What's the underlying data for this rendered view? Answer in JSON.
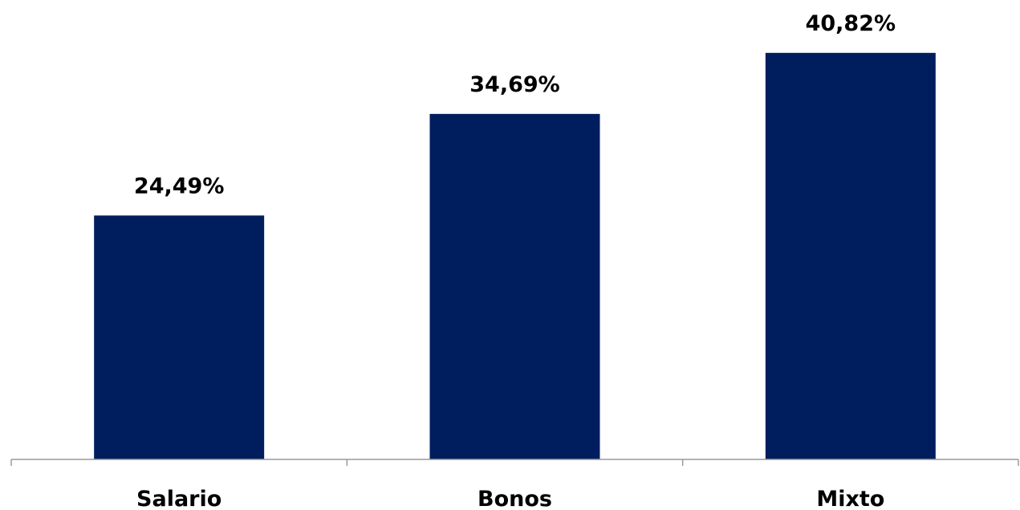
{
  "chart_data": {
    "type": "bar",
    "categories": [
      "Salario",
      "Bonos",
      "Mixto"
    ],
    "values": [
      24.49,
      34.69,
      40.82
    ],
    "data_labels": [
      "24,49%",
      "34,69%",
      "40,82%"
    ],
    "title": "",
    "xlabel": "",
    "ylabel": "",
    "ylim": [
      0,
      45
    ],
    "grid": false,
    "legend": "none",
    "bar_color": "#001E5E"
  }
}
